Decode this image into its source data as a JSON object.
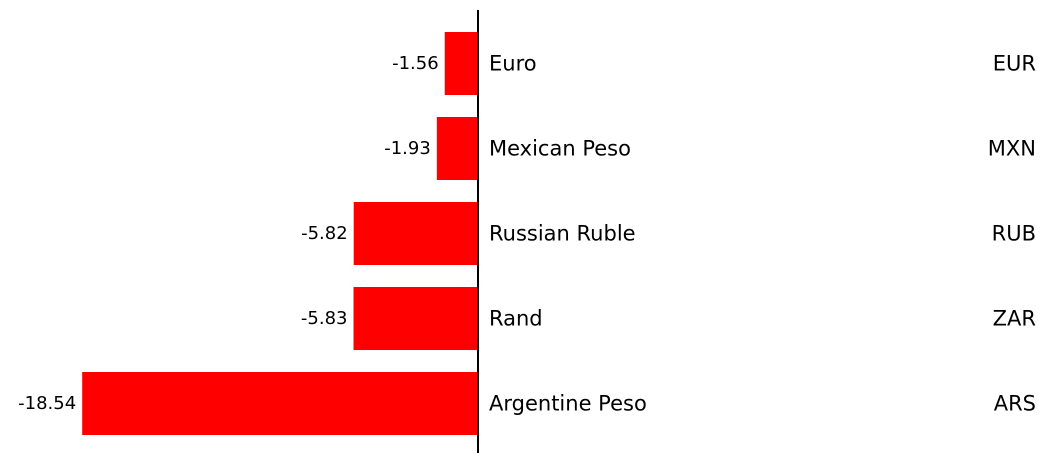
{
  "chart_data": {
    "type": "bar",
    "orientation": "horizontal",
    "title": "",
    "xlabel": "",
    "ylabel": "",
    "xlim": [
      -20,
      0
    ],
    "grid": false,
    "legend": "none",
    "bar_color": "#ff0000",
    "axis_color": "#000000",
    "categories": [
      {
        "name": "Euro",
        "code": "EUR",
        "value": -1.56,
        "label": "-1.56"
      },
      {
        "name": "Mexican Peso",
        "code": "MXN",
        "value": -1.93,
        "label": "-1.93"
      },
      {
        "name": "Russian Ruble",
        "code": "RUB",
        "value": -5.82,
        "label": "-5.82"
      },
      {
        "name": "Rand",
        "code": "ZAR",
        "value": -5.83,
        "label": "-5.83"
      },
      {
        "name": "Argentine Peso",
        "code": "ARS",
        "value": -18.54,
        "label": "-18.54"
      }
    ]
  }
}
